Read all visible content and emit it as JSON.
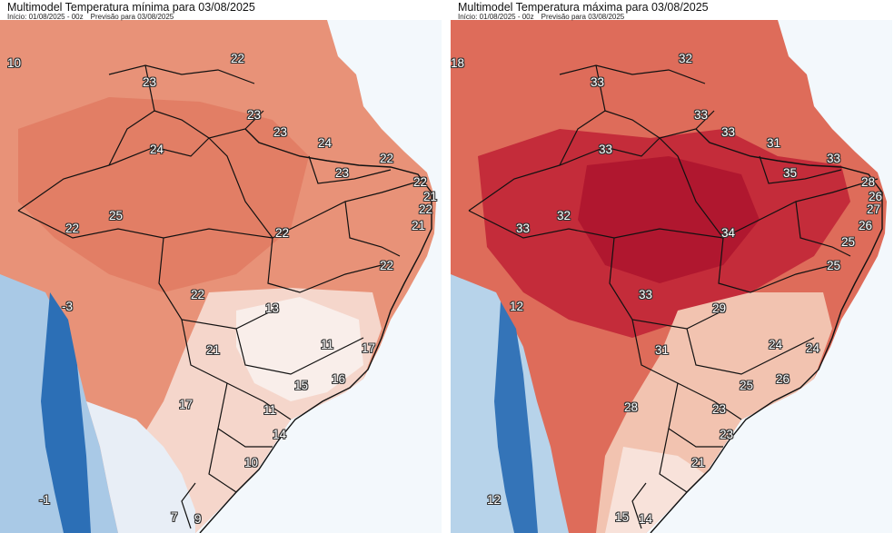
{
  "panels": {
    "min": {
      "title": "Multimodel Temperatura mínima para 03/08/2025",
      "start": "Início: 01/08/2025 - 00z",
      "forecast": "Previsão para 03/08/2025",
      "colors": {
        "sea": "#f3f8fc",
        "land": "#ec9a80",
        "land_hot": "#e4826a",
        "south": "#f6dcd2",
        "cold": "#2c6fb6",
        "cold_light": "#a9c9e6",
        "pale": "#f8ece8"
      },
      "labels": [
        "10",
        "22",
        "23",
        "23",
        "23",
        "24",
        "24",
        "23",
        "22",
        "22",
        "21",
        "22",
        "21",
        "25",
        "22",
        "22",
        "22",
        "22",
        "13",
        "11",
        "17",
        "21",
        "11",
        "15",
        "16",
        "17",
        "14",
        "10",
        "-3",
        "-1",
        "7",
        "9"
      ]
    },
    "max": {
      "title": "Multimodel Temperatura máxima para 03/08/2025",
      "start": "Início: 01/08/2025 - 00z",
      "forecast": "Previsão para 03/08/2025",
      "colors": {
        "sea": "#f3f8fc",
        "land": "#e2705e",
        "land_hot": "#c8303a",
        "south": "#f4cdbd",
        "cold": "#3474b8",
        "cold_light": "#b7d3ea",
        "pale": "#f7e6de"
      },
      "labels": [
        "18",
        "32",
        "33",
        "33",
        "33",
        "31",
        "33",
        "33",
        "35",
        "28",
        "26",
        "27",
        "26",
        "33",
        "32",
        "34",
        "25",
        "25",
        "33",
        "29",
        "24",
        "24",
        "31",
        "26",
        "25",
        "28",
        "23",
        "23",
        "21",
        "12",
        "12",
        "15",
        "14"
      ]
    }
  }
}
